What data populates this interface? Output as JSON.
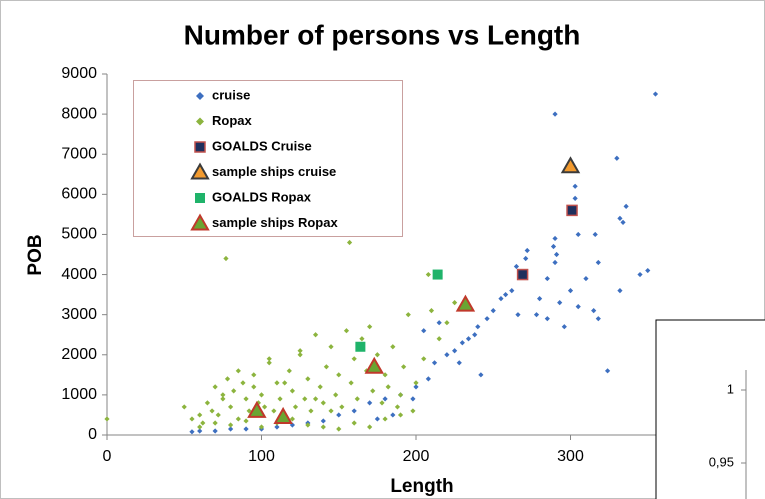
{
  "chart_data": {
    "type": "scatter",
    "title": "Number of persons vs Length",
    "xlabel": "Length",
    "ylabel": "POB",
    "xlim": [
      0,
      400
    ],
    "ylim": [
      0,
      9000
    ],
    "xticks": [
      0,
      100,
      200,
      300
    ],
    "yticks": [
      0,
      1000,
      2000,
      3000,
      4000,
      5000,
      6000,
      7000,
      8000,
      9000
    ],
    "grid": false,
    "legend": "upper left",
    "series": [
      {
        "name": "cruise",
        "color": "#3d6fc0",
        "marker": "diamond",
        "x": [
          355,
          290,
          330,
          303,
          303,
          336,
          334,
          332,
          316,
          305,
          290,
          289,
          291,
          290,
          272,
          271,
          265,
          262,
          258,
          255,
          250,
          246,
          240,
          238,
          230,
          225,
          220,
          212,
          208,
          200,
          190,
          180,
          170,
          160,
          150,
          140,
          130,
          120,
          110,
          100,
          90,
          80,
          70,
          60,
          55,
          285,
          280,
          293,
          300,
          310,
          318,
          324,
          318,
          345,
          350,
          332,
          285,
          278,
          266,
          242,
          228,
          234,
          296,
          305,
          315,
          205,
          215,
          198,
          185,
          175
        ],
        "values": [
          8500,
          8000,
          6900,
          6200,
          5900,
          5700,
          5300,
          5400,
          5000,
          5000,
          4900,
          4700,
          4500,
          4300,
          4600,
          4400,
          4200,
          3600,
          3500,
          3400,
          3100,
          2900,
          2700,
          2500,
          2300,
          2100,
          2000,
          1800,
          1400,
          1200,
          1000,
          900,
          800,
          600,
          500,
          350,
          300,
          250,
          200,
          150,
          150,
          150,
          100,
          100,
          80,
          3900,
          3400,
          3300,
          3600,
          3900,
          4300,
          1600,
          2900,
          4000,
          4100,
          3600,
          2900,
          3000,
          3000,
          1500,
          1800,
          2400,
          2700,
          3200,
          3100,
          2600,
          2800,
          900,
          500,
          400
        ]
      },
      {
        "name": "Ropax",
        "color": "#8cb43e",
        "marker": "diamond",
        "x": [
          0,
          77,
          157,
          208,
          50,
          55,
          60,
          62,
          65,
          68,
          70,
          72,
          75,
          78,
          80,
          82,
          85,
          88,
          90,
          92,
          95,
          98,
          100,
          102,
          105,
          108,
          110,
          112,
          115,
          118,
          120,
          122,
          125,
          128,
          130,
          132,
          135,
          138,
          140,
          142,
          145,
          148,
          150,
          152,
          155,
          158,
          160,
          162,
          165,
          168,
          170,
          172,
          175,
          178,
          180,
          182,
          185,
          188,
          190,
          192,
          195,
          198,
          200,
          205,
          210,
          215,
          220,
          225,
          60,
          70,
          80,
          90,
          100,
          110,
          120,
          130,
          140,
          150,
          160,
          170,
          180,
          190,
          75,
          85,
          95,
          105,
          115,
          125,
          135,
          145
        ],
        "values": [
          400,
          4400,
          4800,
          4000,
          700,
          400,
          500,
          300,
          800,
          600,
          1200,
          500,
          900,
          1400,
          700,
          1100,
          400,
          1300,
          900,
          600,
          1500,
          800,
          1000,
          700,
          1800,
          600,
          1300,
          900,
          500,
          1600,
          1100,
          700,
          2000,
          900,
          1400,
          600,
          2500,
          1200,
          800,
          1700,
          2200,
          1000,
          1500,
          700,
          2600,
          1300,
          1900,
          900,
          2400,
          1600,
          2700,
          1100,
          2000,
          800,
          1500,
          1200,
          2200,
          700,
          1000,
          1700,
          3000,
          600,
          1300,
          1900,
          3100,
          2400,
          2800,
          3300,
          200,
          300,
          250,
          350,
          200,
          300,
          400,
          250,
          200,
          150,
          300,
          200,
          400,
          500,
          1000,
          1600,
          1200,
          1900,
          1300,
          2100,
          900,
          600
        ]
      },
      {
        "name": "GOALDS Cruise",
        "color": "#1f2f5c",
        "edge": "#c0504d",
        "marker": "square",
        "x": [
          269,
          301
        ],
        "values": [
          4000,
          5600
        ]
      },
      {
        "name": "sample ships cruise",
        "color": "#f29a2e",
        "edge": "#3b3b3b",
        "marker": "triangle",
        "x": [
          300
        ],
        "values": [
          6700
        ]
      },
      {
        "name": "GOALDS Ropax",
        "color": "#1fb36a",
        "marker": "square",
        "x": [
          164,
          214
        ],
        "values": [
          2200,
          4000
        ]
      },
      {
        "name": "sample ships Ropax",
        "color": "#6aa532",
        "edge": "#c0392b",
        "marker": "triangle",
        "x": [
          97,
          114,
          173,
          232
        ],
        "values": [
          600,
          450,
          1700,
          3250
        ]
      }
    ]
  },
  "overlay": {
    "yticks": [
      {
        "value": 1,
        "label": "1"
      },
      {
        "value": 0.95,
        "label": "0,95"
      }
    ]
  }
}
